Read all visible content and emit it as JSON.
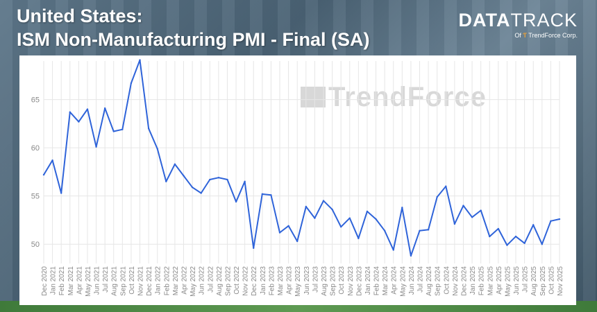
{
  "header": {
    "title_line1": "United States:",
    "title_line2": "ISM Non-Manufacturing PMI - Final (SA)"
  },
  "logo": {
    "main_data": "DATA",
    "main_track": "TRACK",
    "sub_prefix": "Of",
    "sub_brand": "TrendForce Corp."
  },
  "watermark": "TrendForce",
  "colors": {
    "line": "#2e63d9",
    "grid": "#e6e6e6",
    "tick_text": "#888888"
  },
  "chart_data": {
    "type": "line",
    "title": "ISM Non-Manufacturing PMI - Final (SA)",
    "xlabel": "",
    "ylabel": "",
    "ylim": [
      48,
      69
    ],
    "yticks": [
      50,
      55,
      60,
      65
    ],
    "grid": true,
    "x": [
      "Dec 2020",
      "Jan 2021",
      "Feb 2021",
      "Mar 2021",
      "Apr 2021",
      "May 2021",
      "Jun 2021",
      "Jul 2021",
      "Aug 2021",
      "Sep 2021",
      "Oct 2021",
      "Nov 2021",
      "Dec 2021",
      "Jan 2022",
      "Feb 2022",
      "Mar 2022",
      "Apr 2022",
      "May 2022",
      "Jun 2022",
      "Jul 2022",
      "Aug 2022",
      "Sep 2022",
      "Oct 2022",
      "Nov 2022",
      "Dec 2022",
      "Jan 2023",
      "Feb 2023",
      "Mar 2023",
      "Apr 2023",
      "May 2023",
      "Jun 2023",
      "Jul 2023",
      "Aug 2023",
      "Sep 2023",
      "Oct 2023",
      "Nov 2023",
      "Dec 2023",
      "Jan 2024",
      "Feb 2024",
      "Mar 2024",
      "Apr 2024",
      "May 2024",
      "Jun 2024",
      "Jul 2024",
      "Aug 2024",
      "Sep 2024",
      "Oct 2024",
      "Nov 2024",
      "Dec 2024",
      "Jan 2025",
      "Feb 2025",
      "Mar 2025",
      "Apr 2025",
      "May 2025",
      "Jun 2025",
      "Jul 2025",
      "Aug 2025",
      "Sep 2025",
      "Oct 2025",
      "Nov 2025"
    ],
    "series": [
      {
        "values": [
          57.2,
          58.7,
          55.3,
          63.7,
          62.7,
          64.0,
          60.1,
          64.1,
          61.7,
          61.9,
          66.7,
          69.1,
          62.0,
          59.9,
          56.5,
          58.3,
          57.1,
          55.9,
          55.3,
          56.7,
          56.9,
          56.7,
          54.4,
          56.5,
          49.6,
          55.2,
          55.1,
          51.2,
          51.9,
          50.3,
          53.9,
          52.7,
          54.5,
          53.6,
          51.8,
          52.7,
          50.6,
          53.4,
          52.6,
          51.4,
          49.4,
          53.8,
          48.8,
          51.4,
          51.5,
          54.9,
          56.0,
          52.1,
          54.0,
          52.8,
          53.5,
          50.8,
          51.6,
          49.9,
          50.8,
          50.1,
          52.0,
          50.0,
          52.4,
          52.6
        ]
      }
    ]
  }
}
